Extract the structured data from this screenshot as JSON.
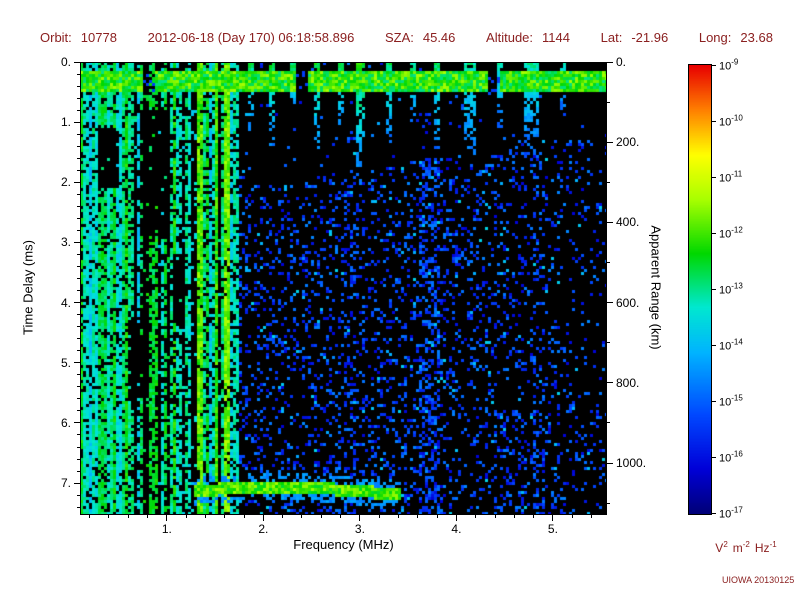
{
  "header": {
    "orbit_label": "Orbit:",
    "orbit": "10778",
    "datetime": "2012-06-18 (Day 170) 06:18:58.896",
    "sza_label": "SZA:",
    "sza": "45.46",
    "altitude_label": "Altitude:",
    "altitude": "1144",
    "lat_label": "Lat:",
    "lat": "-21.96",
    "long_label": "Long:",
    "long": "23.68"
  },
  "footer": {
    "credit": "UIOWA 20130125"
  },
  "colors": {
    "annotation": "#8b2020",
    "axis": "#000000",
    "plot_background": "#000000",
    "page_background": "#ffffff"
  },
  "chart_data": {
    "type": "heatmap",
    "title": "",
    "xlabel": "Frequency (MHz)",
    "ylabel_left": "Time Delay (ms)",
    "ylabel_right": "Apparent Range (km)",
    "x_range_mhz": [
      0.1,
      5.56
    ],
    "x_major_ticks": [
      1,
      2,
      3,
      4,
      5
    ],
    "x_tick_labels": [
      "1.",
      "2.",
      "3.",
      "4.",
      "5."
    ],
    "x_minor_step": 0.2,
    "y_range_ms": [
      0,
      7.53
    ],
    "y_major_ticks": [
      0,
      1,
      2,
      3,
      4,
      5,
      6,
      7
    ],
    "y_tick_labels": [
      "0.",
      "1.",
      "2.",
      "3.",
      "4.",
      "5.",
      "6.",
      "7."
    ],
    "y_minor_step": 0.2,
    "right_axis_km": [
      0,
      200,
      400,
      600,
      800,
      1000
    ],
    "right_tick_labels": [
      "0.",
      "200.",
      "400.",
      "600.",
      "800.",
      "1000."
    ],
    "right_minor_step_km": 100,
    "km_per_ms": 150,
    "colorbar": {
      "tick_exponents": [
        -9,
        -10,
        -11,
        -12,
        -13,
        -14,
        -15,
        -16,
        -17
      ],
      "mantissa": "10",
      "unit_parts": [
        [
          "V",
          "2"
        ],
        [
          "m",
          "-2"
        ],
        [
          "Hz",
          "-1"
        ]
      ],
      "stops": [
        {
          "v": 0.0,
          "c": "#000078"
        },
        {
          "v": 0.1,
          "c": "#0000d8"
        },
        {
          "v": 0.22,
          "c": "#0048ff"
        },
        {
          "v": 0.36,
          "c": "#00b4ff"
        },
        {
          "v": 0.46,
          "c": "#00e8d0"
        },
        {
          "v": 0.58,
          "c": "#00d800"
        },
        {
          "v": 0.7,
          "c": "#a8ff00"
        },
        {
          "v": 0.8,
          "c": "#ffff00"
        },
        {
          "v": 0.9,
          "c": "#ff8000"
        },
        {
          "v": 1.0,
          "c": "#e80000"
        }
      ]
    },
    "features": {
      "seed": 987654321,
      "top_band": {
        "t0": 0.16,
        "t1": 0.5,
        "v_base": 0.5,
        "v_jitter": 0.2,
        "gaps": [
          [
            0.74,
            0.88
          ],
          [
            2.35,
            2.47
          ],
          [
            4.32,
            4.44
          ]
        ]
      },
      "low_band": {
        "fmax": 1.76,
        "solid_fmax": 0.62,
        "solid_density": 0.8,
        "stripe_density": 0.68,
        "inactive_density": 0.1,
        "active_fraction": 0.62,
        "v_min": 0.34,
        "v_span": 0.3,
        "gaps": [
          {
            "f": [
              0.72,
              1.02
            ],
            "t": [
              0.8,
              2.9
            ]
          },
          {
            "f": [
              0.3,
              0.5
            ],
            "t": [
              1.1,
              2.1
            ]
          },
          {
            "f": [
              1.05,
              1.2
            ],
            "t": [
              3.2,
              4.4
            ]
          },
          {
            "f": [
              0.6,
              0.78
            ],
            "t": [
              4.3,
              5.6
            ]
          }
        ]
      },
      "bright_lines": [
        {
          "f": 1.34,
          "w": 0.05,
          "v": 0.58
        },
        {
          "f": 1.52,
          "w": 0.04,
          "v": 0.55
        },
        {
          "f": 1.63,
          "w": 0.05,
          "v": 0.6
        }
      ],
      "drips": [
        {
          "f": 1.87,
          "w": 0.07,
          "t1": 1.15,
          "v": 0.5
        },
        {
          "f": 2.1,
          "w": 0.07,
          "t1": 1.4,
          "v": 0.52
        },
        {
          "f": 2.32,
          "w": 0.06,
          "t1": 0.95,
          "v": 0.5
        },
        {
          "f": 2.55,
          "w": 0.07,
          "t1": 1.5,
          "v": 0.52
        },
        {
          "f": 2.8,
          "w": 0.06,
          "t1": 1.2,
          "v": 0.5
        },
        {
          "f": 3.0,
          "w": 0.08,
          "t1": 1.9,
          "v": 0.55
        },
        {
          "f": 3.3,
          "w": 0.07,
          "t1": 1.35,
          "v": 0.5
        },
        {
          "f": 3.55,
          "w": 0.06,
          "t1": 1.0,
          "v": 0.48
        },
        {
          "f": 3.8,
          "w": 0.07,
          "t1": 1.45,
          "v": 0.5
        },
        {
          "f": 4.15,
          "w": 0.12,
          "t1": 1.65,
          "v": 0.45
        },
        {
          "f": 4.45,
          "w": 0.07,
          "t1": 1.1,
          "v": 0.45
        },
        {
          "f": 4.78,
          "w": 0.13,
          "t1": 1.55,
          "v": 0.45
        },
        {
          "f": 5.1,
          "w": 0.06,
          "t1": 0.9,
          "v": 0.42
        }
      ],
      "speckle": {
        "fmin": 1.76,
        "p_base": 0.2,
        "p_far": 0.07,
        "f_falloff_start": 4.0,
        "v_min": 0.1,
        "v_span": 0.2,
        "cyan_chance": 0.06,
        "cyan_v": 0.34
      },
      "diffuse_columns": [
        {
          "f": 3.72,
          "w": 0.2,
          "boost": 2.2
        },
        {
          "f": 2.9,
          "w": 0.15,
          "boost": 1.5
        },
        {
          "f": 4.85,
          "w": 0.12,
          "boost": 1.7
        }
      ],
      "bottom_right": {
        "f0": 4.3,
        "t0": 5.8,
        "boost": 1.7
      },
      "surface_trace": {
        "f0": 1.28,
        "f1": 3.42,
        "t": 7.12,
        "amp": 0.06,
        "k": 2.2,
        "v": 0.55,
        "fringe": 0.22
      }
    }
  }
}
